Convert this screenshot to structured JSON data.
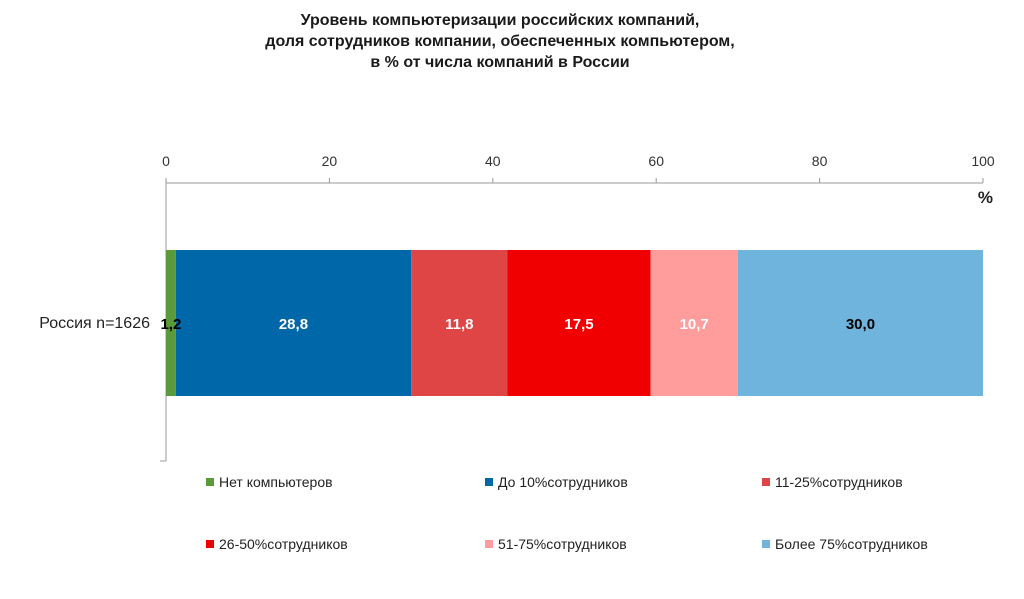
{
  "chart_data": {
    "type": "bar",
    "orientation": "horizontal-stacked",
    "title_lines": [
      "Уровень компьютеризации российских компаний,",
      "доля  сотрудников компании, обеспеченных компьютером,",
      "в % от числа компаний в России"
    ],
    "xaxis_unit": "%",
    "xlim": [
      0,
      100
    ],
    "xticks": [
      "0",
      "20",
      "40",
      "60",
      "80",
      "100"
    ],
    "xtick_values": [
      0,
      20,
      40,
      60,
      80,
      100
    ],
    "categories": [
      "Россия n=1626"
    ],
    "series": [
      {
        "name": "Нет компьютеров",
        "values": [
          1.2
        ],
        "label": "1,2",
        "color": "#5a9a3a",
        "label_color": "#000000"
      },
      {
        "name": "До 10%сотрудников",
        "values": [
          28.8
        ],
        "label": "28,8",
        "color": "#0068a8",
        "label_color": "#ffffff"
      },
      {
        "name": "11-25%сотрудников",
        "values": [
          11.8
        ],
        "label": "11,8",
        "color": "#e04545",
        "label_color": "#ffffff"
      },
      {
        "name": "26-50%сотрудников",
        "values": [
          17.5
        ],
        "label": "17,5",
        "color": "#f00000",
        "label_color": "#ffffff"
      },
      {
        "name": "51-75%сотрудников",
        "values": [
          10.7
        ],
        "label": "10,7",
        "color": "#ff9d9d",
        "label_color": "#ffffff"
      },
      {
        "name": "Более 75%сотрудников",
        "values": [
          30.0
        ],
        "label": "30,0",
        "color": "#6eb4dc",
        "label_color": "#000000"
      }
    ],
    "legend_position": "bottom"
  }
}
